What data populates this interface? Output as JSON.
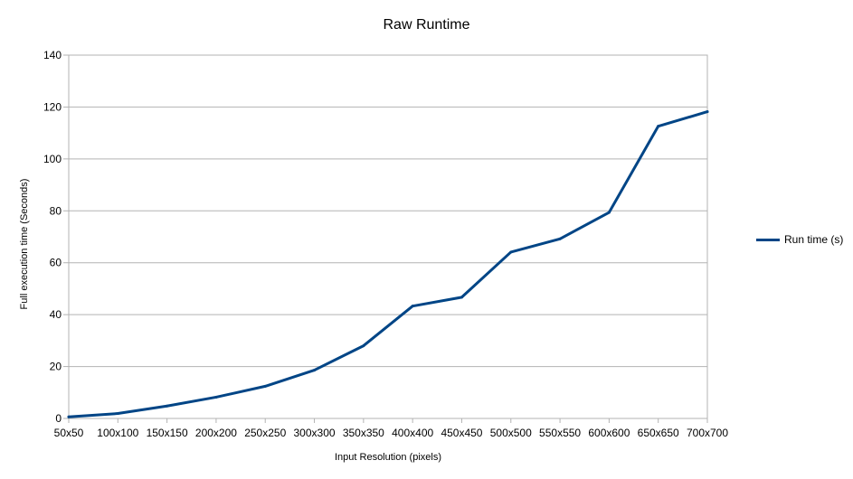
{
  "chart_data": {
    "type": "line",
    "title": "Raw Runtime",
    "xlabel": "Input Resolution (pixels)",
    "ylabel": "Full execution time (Seconds)",
    "categories": [
      "50x50",
      "100x100",
      "150x150",
      "200x200",
      "250x250",
      "300x300",
      "350x350",
      "400x400",
      "450x450",
      "500x500",
      "550x550",
      "600x600",
      "650x650",
      "700x700"
    ],
    "ylim": [
      0,
      140
    ],
    "yticks": [
      0,
      20,
      40,
      60,
      80,
      100,
      120,
      140
    ],
    "grid": true,
    "legend_position": "right",
    "series": [
      {
        "name": "Run time (s)",
        "color": "#004586",
        "values": [
          0.6,
          1.9,
          4.8,
          8.2,
          12.4,
          18.6,
          28.0,
          43.3,
          46.7,
          64.1,
          69.2,
          79.4,
          112.6,
          118.2
        ]
      }
    ]
  }
}
